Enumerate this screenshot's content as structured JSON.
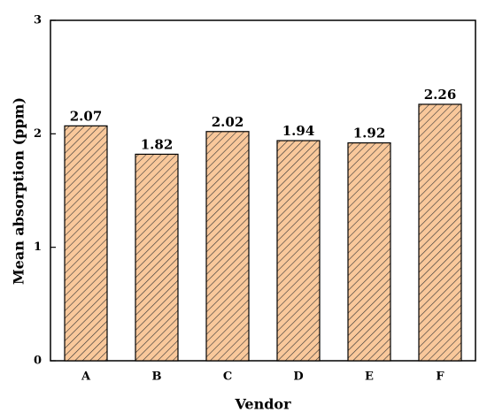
{
  "chart_data": {
    "type": "bar",
    "categories": [
      "A",
      "B",
      "C",
      "D",
      "E",
      "F"
    ],
    "values": [
      2.07,
      1.82,
      2.02,
      1.94,
      1.92,
      2.26
    ],
    "color": "#f9c89b",
    "xlabel": "Vendor",
    "ylabel": "Mean absorption (ppm)",
    "ylim": [
      0,
      3
    ],
    "yticks": [
      0,
      1,
      2,
      3
    ],
    "grid": false
  }
}
